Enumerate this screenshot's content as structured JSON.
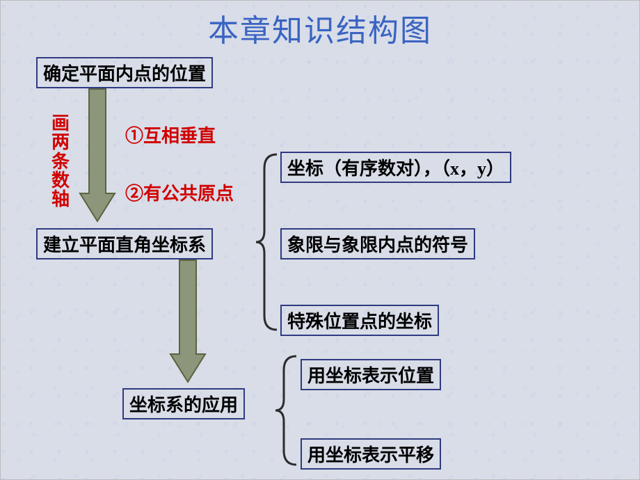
{
  "title": {
    "text": "本章知识结构图",
    "color": "#3a63c2",
    "fontsize": 44
  },
  "box_border_color": "#2f3a80",
  "box_text_color": "#000000",
  "box_fontsize": 26,
  "annot_fontsize": 26,
  "arrow_fill": "#8c967a",
  "arrow_stroke": "#5c623f",
  "brace_color": "#2c2c2c",
  "vlabel": {
    "text": "画两条数轴",
    "color": "#d10000"
  },
  "annot1": {
    "text": "①互相垂直",
    "color": "#d10000"
  },
  "annot2": {
    "text": "②有公共原点",
    "color": "#d10000"
  },
  "nodes": {
    "n1": "确定平面内点的位置",
    "n2": "建立平面直角坐标系",
    "n3": "坐标系的应用",
    "b1": "坐标（有序数对），（x，y）",
    "b2": "象限与象限内点的符号",
    "b3": "特殊位置点的坐标",
    "c1": "用坐标表示位置",
    "c2": "用坐标表示平移"
  }
}
